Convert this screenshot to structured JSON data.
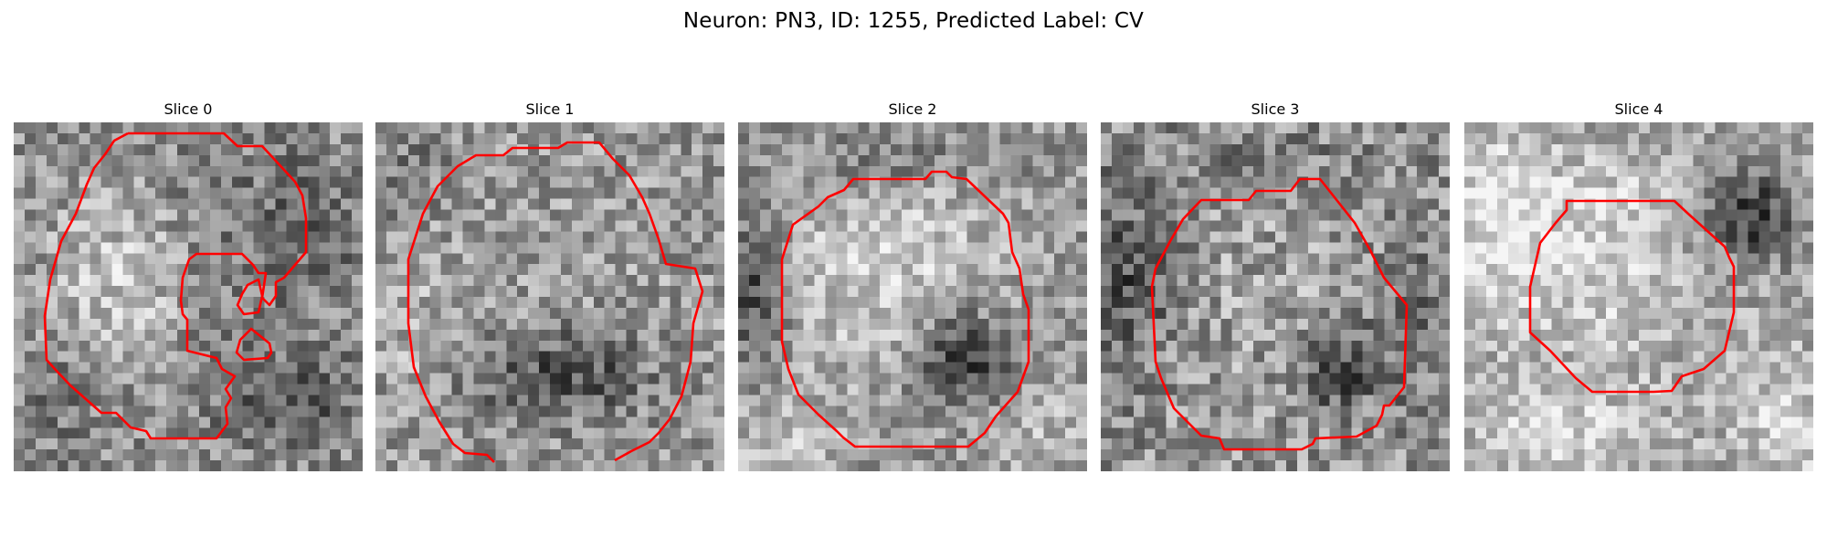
{
  "figure": {
    "title": "Neuron: PN3, ID: 1255, Predicted Label: CV"
  },
  "slices": [
    {
      "title": "Slice 0"
    },
    {
      "title": "Slice 1"
    },
    {
      "title": "Slice 2"
    },
    {
      "title": "Slice 3"
    },
    {
      "title": "Slice 4"
    }
  ],
  "colors": {
    "contour": "#ff0000",
    "colormap": "grayscale"
  }
}
